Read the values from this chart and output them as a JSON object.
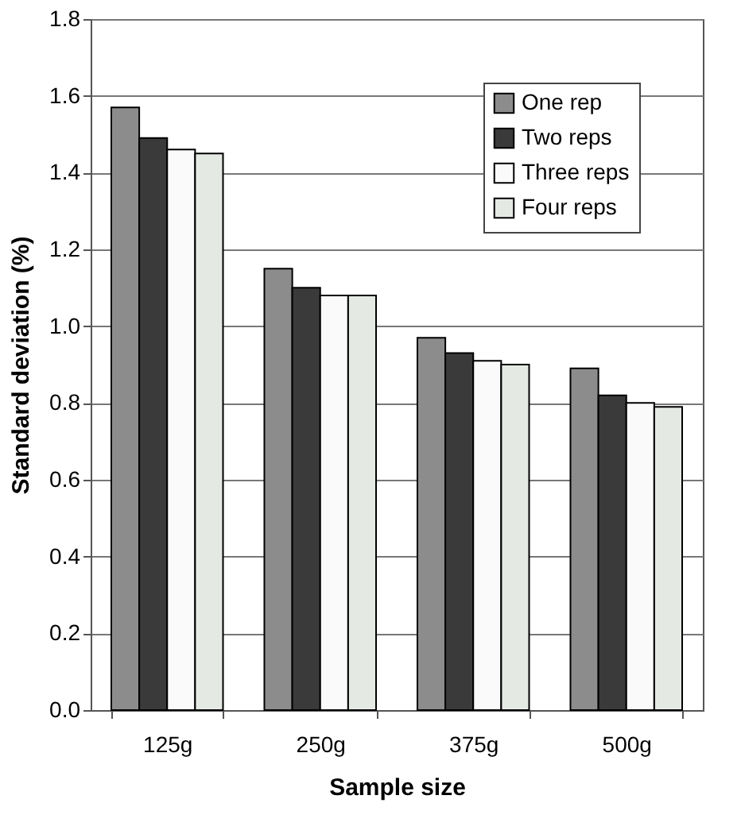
{
  "chart_data": {
    "type": "bar",
    "xlabel": "Sample size",
    "ylabel": "Standard  deviation (%)",
    "categories": [
      "125g",
      "250g",
      "375g",
      "500g"
    ],
    "series": [
      {
        "name": "One rep",
        "color": "#8c8c8c",
        "values": [
          1.57,
          1.15,
          0.97,
          0.89
        ]
      },
      {
        "name": "Two reps",
        "color": "#3a3a3a",
        "values": [
          1.49,
          1.1,
          0.93,
          0.82
        ]
      },
      {
        "name": "Three reps",
        "color": "#fafafa",
        "values": [
          1.46,
          1.08,
          0.91,
          0.8
        ]
      },
      {
        "name": "Four reps",
        "color": "#e4e9e4",
        "values": [
          1.45,
          1.08,
          0.9,
          0.79
        ]
      }
    ],
    "ylim": [
      0,
      1.8
    ],
    "yticks": [
      {
        "value": 0,
        "label": "0.0"
      },
      {
        "value": 0.2,
        "label": "0.2"
      },
      {
        "value": 0.4,
        "label": "0.4"
      },
      {
        "value": 0.6,
        "label": "0.6"
      },
      {
        "value": 0.8,
        "label": "0.8"
      },
      {
        "value": 1.0,
        "label": "1.0"
      },
      {
        "value": 1.2,
        "label": "1.2"
      },
      {
        "value": 1.4,
        "label": "1.4"
      },
      {
        "value": 1.6,
        "label": "1.6"
      },
      {
        "value": 1.8,
        "label": "1.8"
      }
    ],
    "grid": "y",
    "legend": "top right"
  }
}
